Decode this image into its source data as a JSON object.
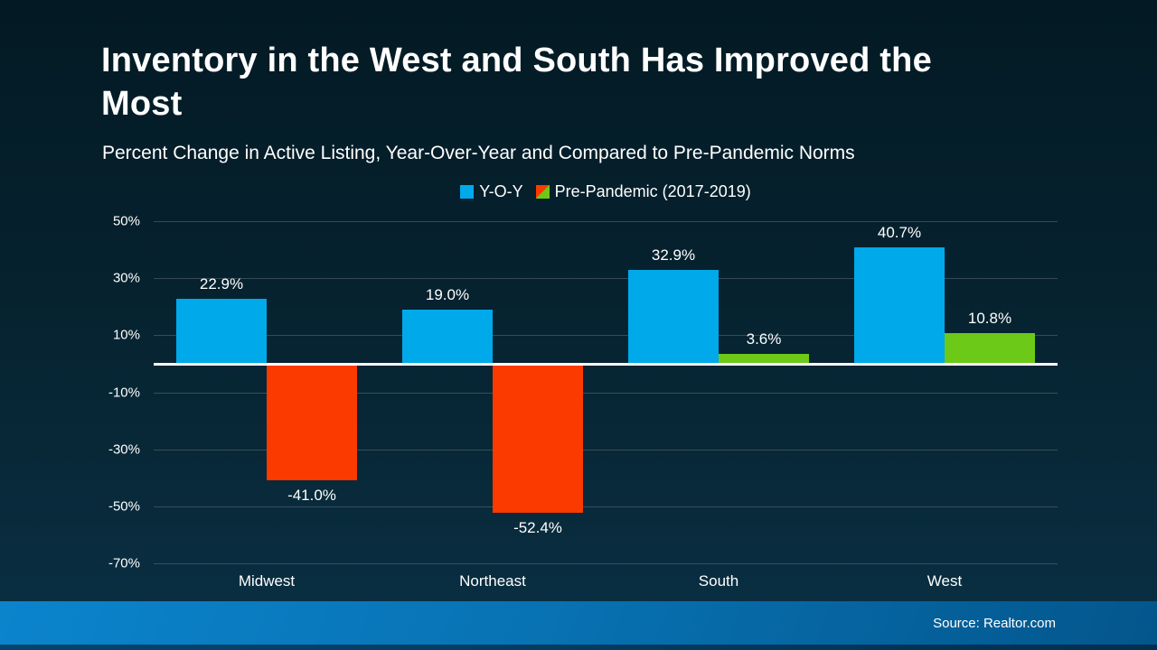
{
  "header": {
    "title": "Inventory in the West and South Has Improved the Most",
    "subtitle": "Percent Change in Active Listing, Year-Over-Year and Compared to Pre-Pandemic Norms"
  },
  "legend": {
    "items": [
      {
        "label": "Y-O-Y",
        "swatch": "solid-blue-square"
      },
      {
        "label": "Pre-Pandemic (2017-2019)",
        "swatch": "diagonal-split-orange-green-square"
      }
    ]
  },
  "footer": {
    "source": "Source: Realtor.com"
  },
  "colors": {
    "yoy": "#00a9ea",
    "pre_pandemic_positive": "#6cc918",
    "pre_pandemic_negative": "#fb3a00",
    "zero_line": "#ffffff",
    "gridline": "#5f6d78",
    "background_top": "#031a24",
    "background_bottom": "#0a3044",
    "footer_gradient_left": "#0b84cd",
    "footer_gradient_right": "#03568c"
  },
  "chart_data": {
    "type": "bar",
    "title": "Inventory in the West and South Has Improved the Most",
    "subtitle": "Percent Change in Active Listing, Year-Over-Year and Compared to Pre-Pandemic Norms",
    "categories": [
      "Midwest",
      "Northeast",
      "South",
      "West"
    ],
    "series": [
      {
        "name": "Y-O-Y",
        "key": "yoy",
        "values": [
          22.9,
          19.0,
          32.9,
          40.7
        ],
        "labels": [
          "22.9%",
          "19.0%",
          "32.9%",
          "40.7%"
        ]
      },
      {
        "name": "Pre-Pandemic (2017-2019)",
        "key": "pre-pandemic",
        "values": [
          -41.0,
          -52.4,
          3.6,
          10.8
        ],
        "labels": [
          "-41.0%",
          "-52.4%",
          "3.6%",
          "10.8%"
        ]
      }
    ],
    "xlabel": "",
    "ylabel": "",
    "ylim": [
      -70,
      50
    ],
    "yticks": [
      50,
      30,
      10,
      -10,
      -30,
      -50,
      -70
    ],
    "ytick_labels": [
      "50%",
      "30%",
      "10%",
      "-10%",
      "-30%",
      "-50%",
      "-70%"
    ],
    "grid": true,
    "legend_position": "top",
    "source": "Source: Realtor.com"
  }
}
